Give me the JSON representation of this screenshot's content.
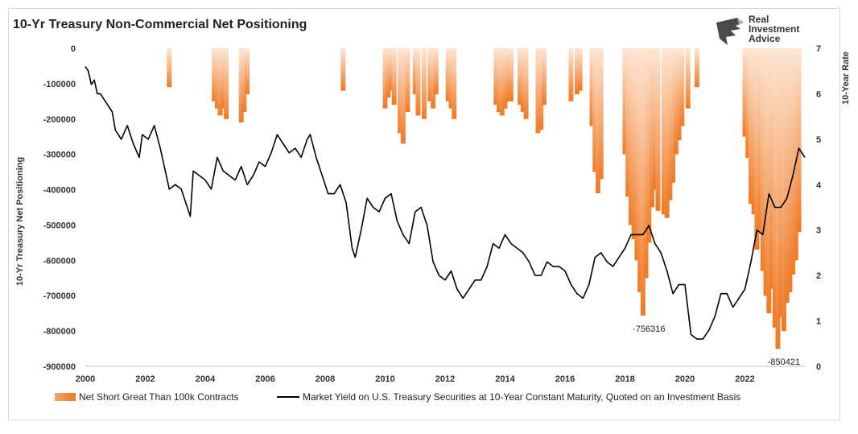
{
  "title": "10-Yr Treasury Non-Commercial Net Positioning",
  "logo": {
    "line1": "Real",
    "line2": "Investment",
    "line3": "Advice"
  },
  "chart_data": {
    "type": "bar",
    "title": "10-Yr Treasury Non-Commercial Net Positioning",
    "ylabel": "10-Yr Treasury Net Positioning",
    "y2label": "10-Year Rate",
    "xlim": [
      2000,
      2024
    ],
    "ylim": [
      -900000,
      0
    ],
    "y2lim": [
      0,
      7
    ],
    "x_ticks": [
      "2000",
      "2002",
      "2004",
      "2006",
      "2008",
      "2010",
      "2012",
      "2014",
      "2016",
      "2018",
      "2020",
      "2022"
    ],
    "y_ticks": [
      "0",
      "-100000",
      "-200000",
      "-300000",
      "-400000",
      "-500000",
      "-600000",
      "-700000",
      "-800000",
      "-900000"
    ],
    "y2_ticks": [
      "0",
      "1",
      "2",
      "3",
      "4",
      "5",
      "6",
      "7"
    ],
    "legend_position": "bottom",
    "colors": {
      "bars": "#f07c2a",
      "line": "#000000"
    },
    "annotations": [
      {
        "text": "-756316",
        "x": 2018.8,
        "y": -756316
      },
      {
        "text": "-850421",
        "x": 2023.3,
        "y": -850421
      }
    ],
    "series": [
      {
        "name": "Net Short Great Than 100k Contracts",
        "kind": "bar",
        "x": [
          2002.8,
          2004.3,
          2004.4,
          2004.5,
          2004.6,
          2004.7,
          2005.2,
          2005.3,
          2005.4,
          2008.6,
          2010.0,
          2010.1,
          2010.2,
          2010.3,
          2010.5,
          2010.6,
          2010.75,
          2011.0,
          2011.1,
          2011.3,
          2011.5,
          2011.6,
          2011.7,
          2012.1,
          2012.2,
          2012.3,
          2013.7,
          2013.8,
          2013.9,
          2014.0,
          2014.1,
          2014.2,
          2014.5,
          2014.6,
          2014.7,
          2015.1,
          2015.2,
          2015.3,
          2016.2,
          2016.4,
          2016.5,
          2016.9,
          2017.0,
          2017.1,
          2017.2,
          2018.0,
          2018.1,
          2018.2,
          2018.3,
          2018.4,
          2018.5,
          2018.6,
          2018.7,
          2018.8,
          2018.9,
          2019.0,
          2019.1,
          2019.3,
          2019.4,
          2019.5,
          2019.6,
          2019.7,
          2019.8,
          2019.9,
          2020.1,
          2020.4,
          2022.0,
          2022.1,
          2022.2,
          2022.3,
          2022.4,
          2022.5,
          2022.6,
          2022.7,
          2022.8,
          2022.9,
          2023.0,
          2023.1,
          2023.2,
          2023.3,
          2023.4,
          2023.5,
          2023.6,
          2023.7,
          2023.8
        ],
        "values": [
          -110000,
          -150000,
          -170000,
          -190000,
          -170000,
          -200000,
          -210000,
          -180000,
          -130000,
          -120000,
          -170000,
          -140000,
          -120000,
          -160000,
          -240000,
          -270000,
          -180000,
          -130000,
          -190000,
          -200000,
          -150000,
          -170000,
          -130000,
          -150000,
          -170000,
          -200000,
          -160000,
          -180000,
          -190000,
          -170000,
          -150000,
          -150000,
          -160000,
          -180000,
          -200000,
          -240000,
          -230000,
          -160000,
          -150000,
          -130000,
          -120000,
          -220000,
          -350000,
          -410000,
          -370000,
          -300000,
          -420000,
          -500000,
          -540000,
          -600000,
          -690000,
          -756316,
          -650000,
          -550000,
          -450000,
          -400000,
          -460000,
          -470000,
          -480000,
          -430000,
          -380000,
          -300000,
          -260000,
          -220000,
          -170000,
          -110000,
          -250000,
          -310000,
          -440000,
          -470000,
          -570000,
          -520000,
          -630000,
          -700000,
          -750000,
          -680000,
          -790000,
          -850421,
          -760000,
          -800000,
          -720000,
          -690000,
          -640000,
          -600000,
          -520000
        ]
      },
      {
        "name": "Market Yield on U.S. Treasury Securities at 10-Year Constant Maturity, Quoted on an Investment Basis",
        "kind": "line",
        "axis": "right",
        "x": [
          2000.0,
          2000.1,
          2000.2,
          2000.3,
          2000.4,
          2000.5,
          2000.7,
          2000.9,
          2001.0,
          2001.2,
          2001.4,
          2001.6,
          2001.8,
          2001.9,
          2002.1,
          2002.3,
          2002.5,
          2002.7,
          2002.8,
          2003.0,
          2003.2,
          2003.4,
          2003.5,
          2003.6,
          2003.8,
          2004.0,
          2004.2,
          2004.4,
          2004.6,
          2004.8,
          2005.0,
          2005.2,
          2005.4,
          2005.6,
          2005.8,
          2006.0,
          2006.2,
          2006.4,
          2006.6,
          2006.8,
          2007.0,
          2007.2,
          2007.4,
          2007.5,
          2007.7,
          2007.9,
          2008.1,
          2008.3,
          2008.5,
          2008.7,
          2008.9,
          2009.0,
          2009.2,
          2009.4,
          2009.6,
          2009.8,
          2010.0,
          2010.2,
          2010.4,
          2010.6,
          2010.8,
          2011.0,
          2011.2,
          2011.4,
          2011.6,
          2011.8,
          2012.0,
          2012.2,
          2012.4,
          2012.6,
          2012.8,
          2013.0,
          2013.2,
          2013.4,
          2013.6,
          2013.8,
          2014.0,
          2014.2,
          2014.4,
          2014.6,
          2014.8,
          2015.0,
          2015.2,
          2015.4,
          2015.6,
          2015.8,
          2016.0,
          2016.2,
          2016.4,
          2016.6,
          2016.8,
          2017.0,
          2017.2,
          2017.4,
          2017.6,
          2017.8,
          2018.0,
          2018.2,
          2018.4,
          2018.6,
          2018.8,
          2019.0,
          2019.2,
          2019.4,
          2019.6,
          2019.8,
          2020.0,
          2020.2,
          2020.4,
          2020.6,
          2020.8,
          2021.0,
          2021.2,
          2021.4,
          2021.6,
          2021.8,
          2022.0,
          2022.2,
          2022.4,
          2022.6,
          2022.8,
          2023.0,
          2023.2,
          2023.4,
          2023.6,
          2023.8,
          2024.0
        ],
        "values": [
          6.6,
          6.5,
          6.2,
          6.3,
          6.0,
          6.0,
          5.8,
          5.6,
          5.2,
          5.0,
          5.3,
          4.9,
          4.6,
          5.1,
          5.0,
          5.3,
          4.8,
          4.2,
          3.9,
          4.0,
          3.9,
          3.5,
          3.3,
          4.3,
          4.2,
          4.1,
          3.9,
          4.6,
          4.3,
          4.2,
          4.1,
          4.4,
          4.0,
          4.2,
          4.5,
          4.4,
          4.7,
          5.1,
          4.9,
          4.7,
          4.8,
          4.6,
          5.0,
          5.1,
          4.6,
          4.2,
          3.8,
          3.8,
          4.0,
          3.6,
          2.6,
          2.4,
          3.0,
          3.7,
          3.5,
          3.4,
          3.7,
          3.8,
          3.2,
          2.9,
          2.7,
          3.4,
          3.5,
          3.1,
          2.3,
          2.0,
          1.9,
          2.1,
          1.7,
          1.5,
          1.7,
          1.9,
          1.9,
          2.2,
          2.7,
          2.6,
          2.9,
          2.7,
          2.6,
          2.5,
          2.3,
          2.0,
          2.0,
          2.3,
          2.2,
          2.2,
          2.1,
          1.8,
          1.6,
          1.5,
          1.8,
          2.4,
          2.5,
          2.3,
          2.2,
          2.4,
          2.6,
          2.9,
          2.9,
          2.9,
          3.1,
          2.7,
          2.5,
          2.1,
          1.6,
          1.8,
          1.8,
          0.7,
          0.6,
          0.6,
          0.8,
          1.1,
          1.6,
          1.6,
          1.3,
          1.5,
          1.7,
          2.3,
          3.0,
          2.9,
          3.8,
          3.5,
          3.5,
          3.7,
          4.2,
          4.8,
          4.6
        ]
      }
    ]
  }
}
